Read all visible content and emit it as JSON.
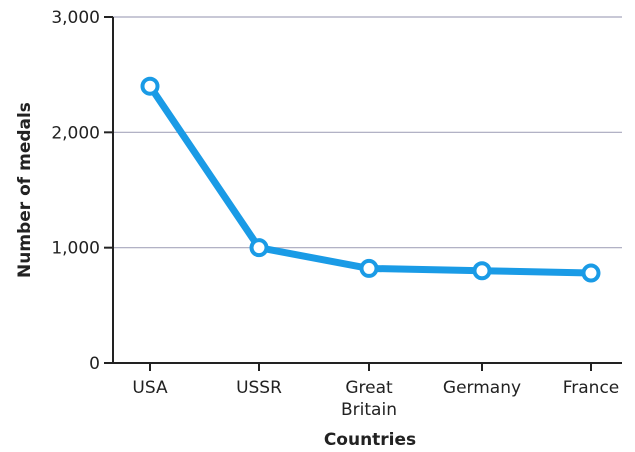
{
  "chart_data": {
    "type": "line",
    "title": "",
    "xlabel": "Countries",
    "ylabel": "Number of medals",
    "categories": [
      "USA",
      "USSR",
      "Great Britain",
      "Germany",
      "France"
    ],
    "category_lines": [
      [
        "USA"
      ],
      [
        "USSR"
      ],
      [
        "Great",
        "Britain"
      ],
      [
        "Germany"
      ],
      [
        "France"
      ]
    ],
    "series": [
      {
        "values": [
          2400,
          1000,
          820,
          800,
          780
        ],
        "color": "#1a9be6"
      }
    ],
    "ylim": [
      0,
      3000
    ],
    "yticks": [
      0,
      1000,
      2000,
      3000
    ],
    "ytick_labels": [
      "0",
      "1,000",
      "2,000",
      "3,000"
    ],
    "grid": true,
    "legend": "none"
  }
}
